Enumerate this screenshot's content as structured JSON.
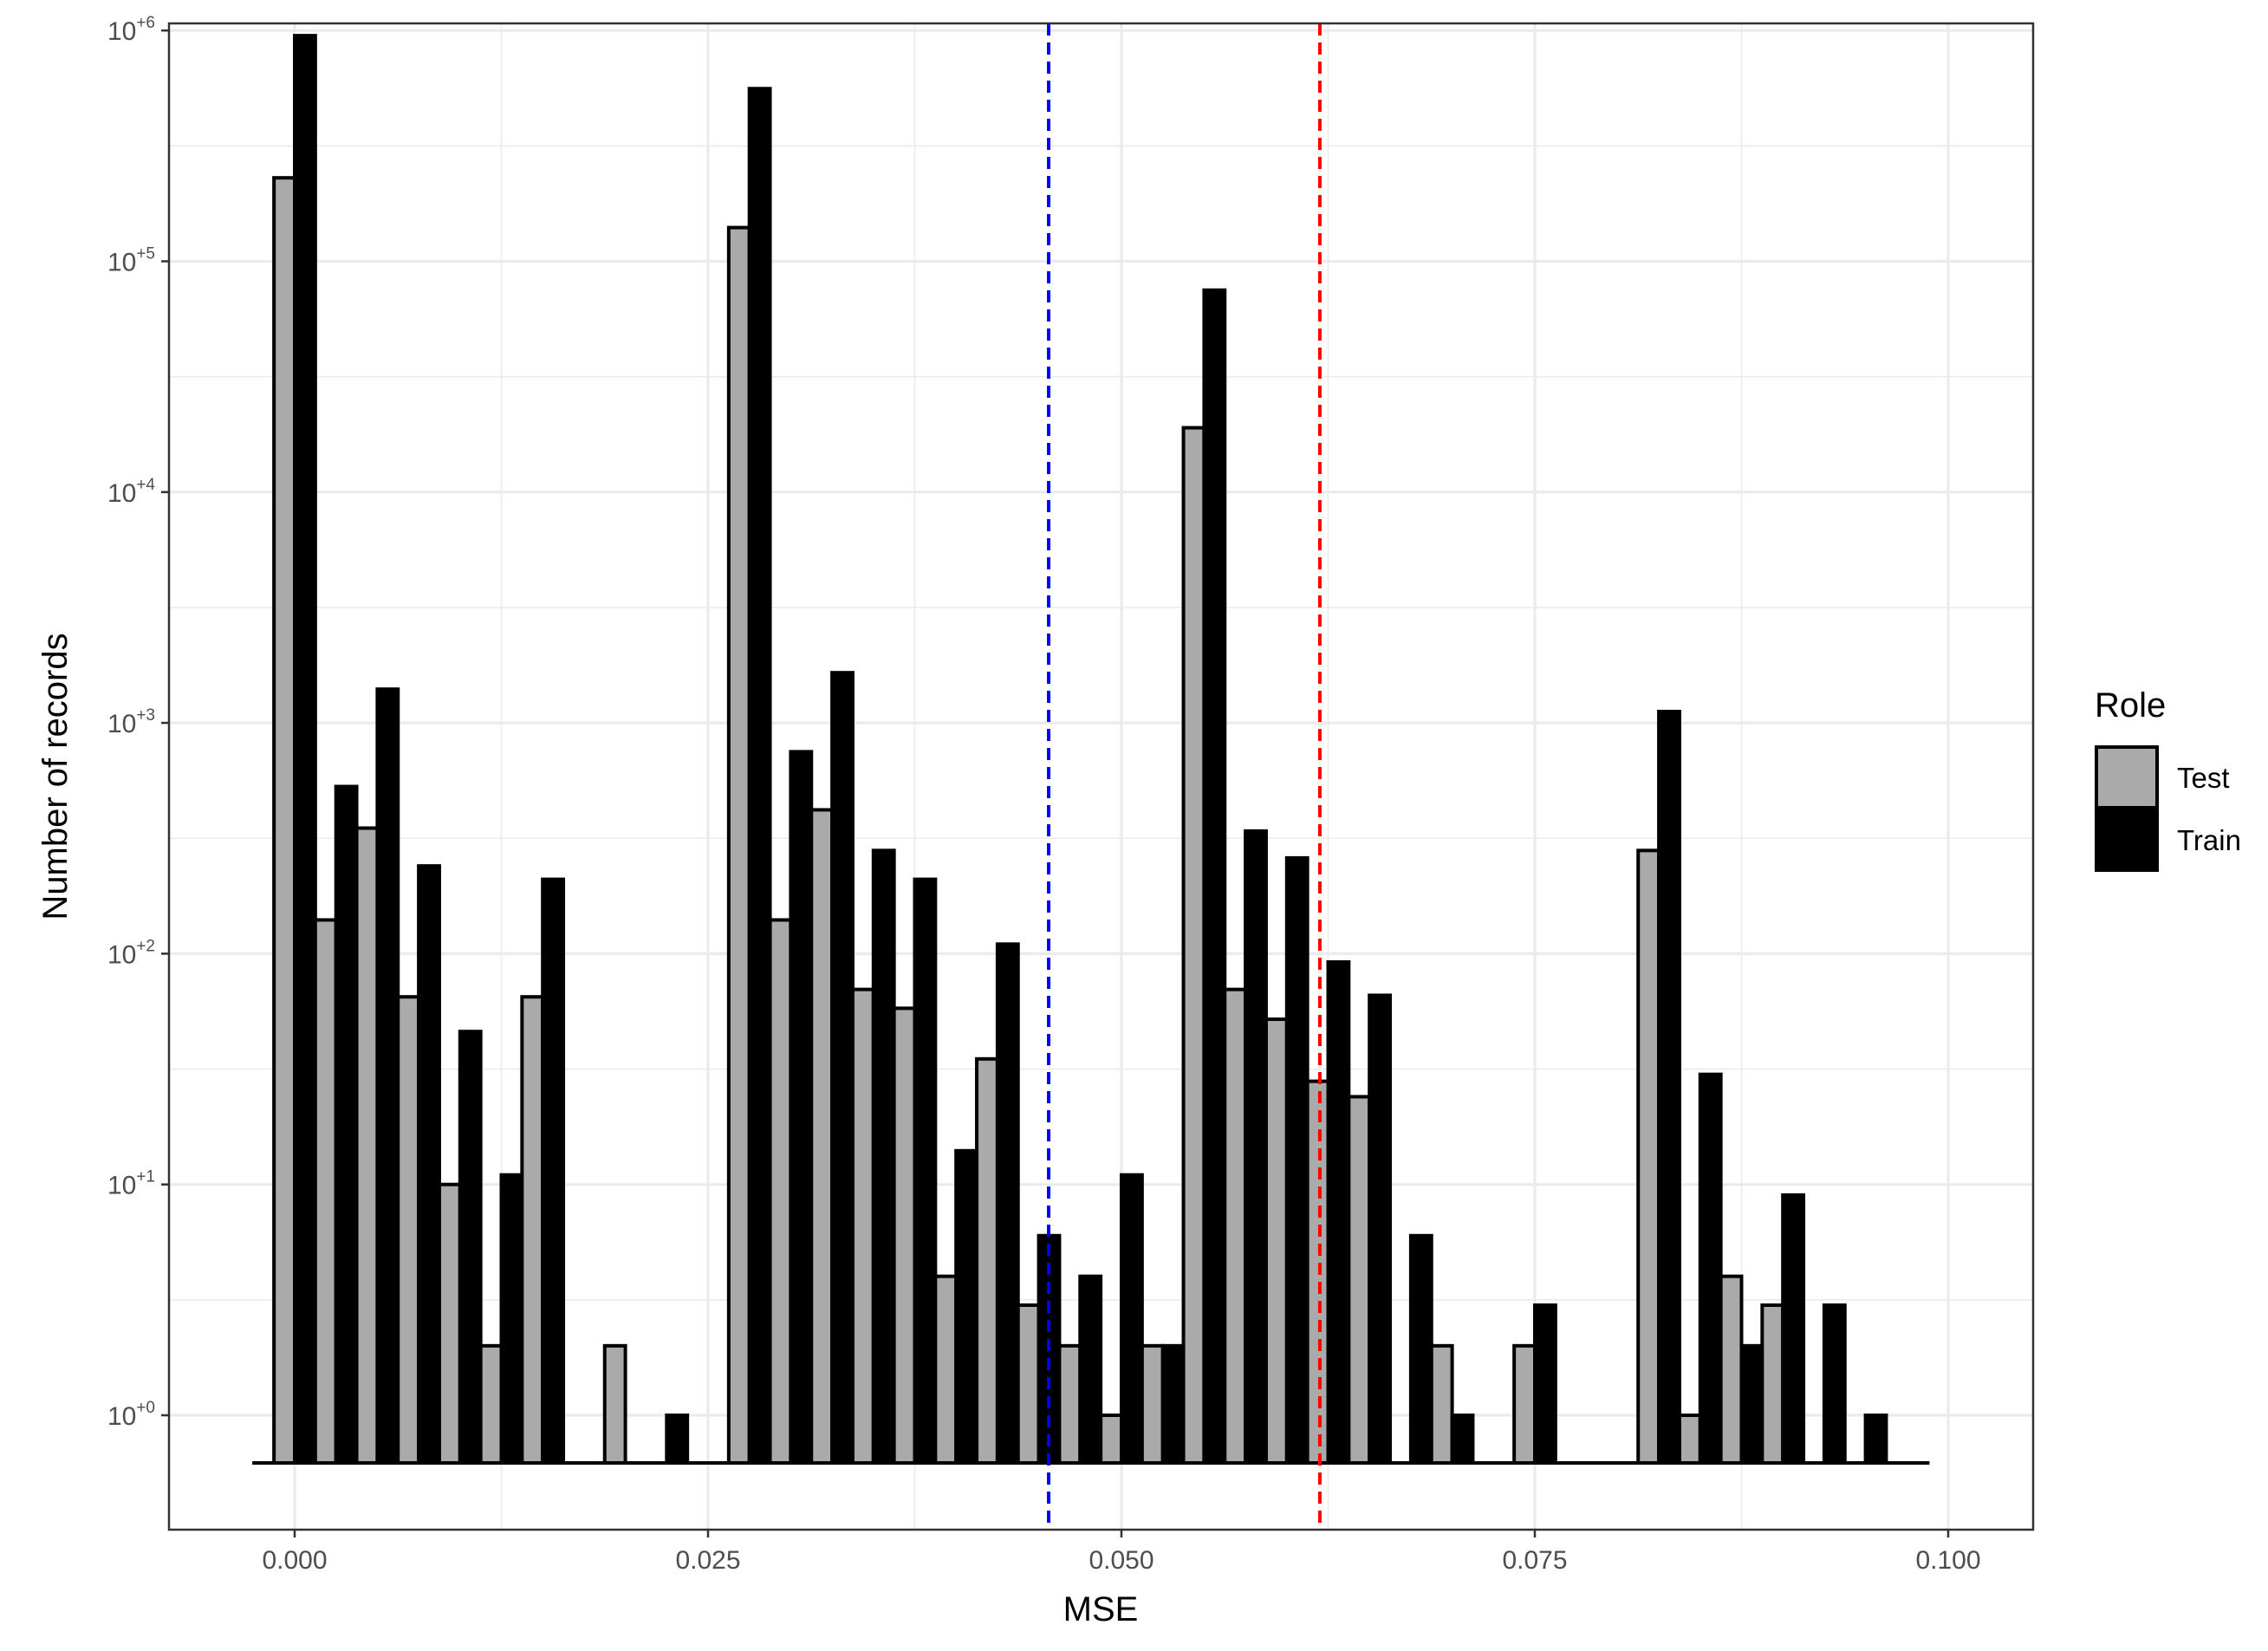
{
  "chart_data": {
    "type": "bar",
    "xlabel": "MSE",
    "ylabel": "Number of records",
    "xlim": [
      -0.0031,
      0.1
    ],
    "x_ticks": [
      0.0,
      0.025,
      0.05,
      0.075,
      0.1
    ],
    "x_tick_labels": [
      "0.000",
      "0.025",
      "0.050",
      "0.075",
      "0.100"
    ],
    "y_scale": "log10",
    "y_ticks": [
      1,
      10,
      100,
      1000,
      10000,
      100000,
      1000000
    ],
    "y_tick_labels": [
      {
        "base": "10",
        "exp": "+0"
      },
      {
        "base": "10",
        "exp": "+1"
      },
      {
        "base": "10",
        "exp": "+2"
      },
      {
        "base": "10",
        "exp": "+3"
      },
      {
        "base": "10",
        "exp": "+4"
      },
      {
        "base": "10",
        "exp": "+5"
      },
      {
        "base": "10",
        "exp": "+6"
      }
    ],
    "grid": true,
    "legend": {
      "title": "Role",
      "position": "right",
      "entries": [
        {
          "name": "Test",
          "color": "#aaaaaa"
        },
        {
          "name": "Train",
          "color": "#000000"
        }
      ]
    },
    "bin_width": 0.0025,
    "bin_starts": [
      -0.00125,
      0.00125,
      0.00375,
      0.00625,
      0.00875,
      0.01125,
      0.01375,
      0.01875,
      0.02125,
      0.02625,
      0.02875,
      0.03125,
      0.03375,
      0.03625,
      0.03875,
      0.04125,
      0.04375,
      0.04625,
      0.04875,
      0.05125,
      0.05375,
      0.05625,
      0.05875,
      0.06125,
      0.06375,
      0.06625,
      0.06875,
      0.07375,
      0.08125,
      0.08375,
      0.08625,
      0.08875,
      0.09125,
      0.09375
    ],
    "series": [
      {
        "name": "Test",
        "color": "#aaaaaa",
        "values": [
          230000,
          140,
          350,
          65,
          10,
          2,
          65,
          2,
          0,
          140000,
          140,
          420,
          70,
          58,
          4,
          35,
          3,
          2,
          1,
          2,
          19000,
          70,
          52,
          28,
          24,
          0,
          2,
          2,
          280,
          1,
          4,
          3,
          0,
          0
        ]
      },
      {
        "name": "Train",
        "color": "#000000",
        "values": [
          950000,
          530,
          1400,
          240,
          46,
          11,
          210,
          0,
          1,
          560000,
          750,
          1650,
          280,
          210,
          14,
          110,
          6,
          4,
          11,
          2,
          75000,
          340,
          260,
          92,
          66,
          6,
          1,
          3,
          1120,
          30,
          2,
          9,
          3,
          1
        ]
      }
    ],
    "reference_lines": [
      {
        "x": 0.0456,
        "color": "#0000ff",
        "style": "dashed"
      },
      {
        "x": 0.062,
        "color": "#ff0000",
        "style": "dashed"
      }
    ]
  }
}
